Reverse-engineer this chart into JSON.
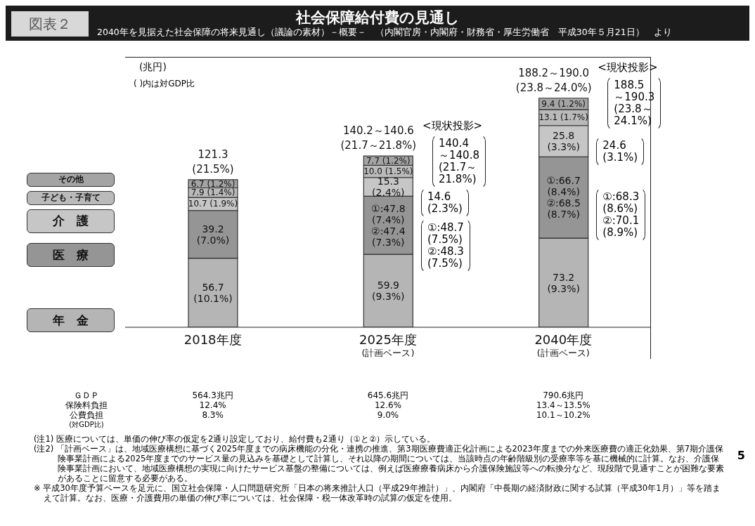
{
  "chart_data": {
    "type": "bar",
    "title": "社会保障給付費の見通し",
    "subtitle": "2040年を見据えた社会保障の将来見通し（議論の素材）－概要－　（内閣官房・内閣府・財務省・厚生労働省　平成30年５月21日）　より",
    "stacked": true,
    "legend": "left",
    "categories": [
      "2018年度",
      "2025年度\n(計画ベース)",
      "2040年度\n(計画ベース)"
    ],
    "series": [
      {
        "name": "年　金",
        "type": "bar",
        "color": "#b5b5b5",
        "values": [
          56.7,
          59.9,
          73.2
        ],
        "value_labels": [
          "56.7\n(10.1%)",
          "59.9\n(9.3%)",
          "73.2\n(9.3%)"
        ]
      },
      {
        "name": "医　療",
        "type": "bar",
        "color": "#959595",
        "values": [
          39.2,
          47.8,
          66.7
        ],
        "value_labels": [
          "39.2\n(7.0%)",
          "①:47.8\n(7.4%)\n②:47.4\n(7.3%)",
          "①:66.7\n(8.4%)\n②:68.5\n(8.7%)"
        ]
      },
      {
        "name": "介　護",
        "type": "bar",
        "color": "#c6c6c6",
        "values": [
          10.7,
          15.3,
          25.8
        ],
        "value_labels": [
          "10.7 (1.9%)",
          "15.3\n(2.4%)",
          "25.8\n(3.3%)"
        ]
      },
      {
        "name": "子ども・子育て",
        "type": "bar",
        "color": "#bababa",
        "values": [
          7.9,
          10.0,
          13.1
        ],
        "value_labels": [
          "7.9 (1.4%)",
          "10.0 (1.5%)",
          "13.1 (1.7%)"
        ]
      },
      {
        "name": "その他",
        "type": "bar",
        "color": "#a4a4a4",
        "values": [
          6.7,
          7.7,
          9.4
        ],
        "value_labels": [
          "6.7 (1.2%)",
          "7.7 (1.2%)",
          "9.4 (1.2%)"
        ]
      }
    ],
    "totals": [
      "121.3\n(21.5%)",
      "140.2～140.6\n(21.7～21.8%)",
      "188.2～190.0\n(23.8～24.0%)"
    ],
    "annotations": [
      "(兆円)",
      "( )内は対GDP比",
      "<現状投影>\n140.4\n～140.8\n(21.7～\n21.8%)",
      "14.6\n(2.3%)",
      "①:48.7\n(7.5%)\n②:48.3\n(7.5%)",
      "<現状投影>\n188.5\n～190.3\n(23.8～\n24.1%)",
      "24.6\n(3.1%)",
      "①:68.3\n(8.6%)\n②:70.1\n(8.9%)",
      "図表２",
      "ＧＤＰ",
      "保険料負担",
      "公費負担",
      "(対GDP比)",
      "564.3兆円\n12.4%\n8.3%",
      "645.6兆円\n12.6%\n9.0%",
      "790.6兆円\n13.4～13.5%\n10.1～10.2%",
      "(注1) 医療については、単価の伸び率の仮定を2通り設定しており、給付費も2通り（①と②）示している。",
      "(注2) 「計画ベース」は、地域医療構想に基づく2025年度までの病床機能の分化・連携の推進、第3期医療費適正化計画による2023年度までの外来医療費の適正化効果、第7期介護保険事業計画による2025年度までのサービス量の見込みを基礎として計算し、それ以降の期間については、当該時点の年齢階級別の受療率等を基に機械的に計算。なお、介護保険事業計画において、地域医療構想の実現に向けたサービス基盤の整備については、例えば医療療養病床から介護保険施設等への転換分など、現段階で見通すことが困難な要素があることに留意する必要がある。",
      "※ 平成30年度予算ベースを足元に、国立社会保障・人口問題研究所「日本の将来推計人口（平成29年推計）」、内閣府「中長期の経済財政に関する試算（平成30年1月）」等を踏まえて計算。なお、医療・介護費用の単価の伸び率については、社会保障・税一体改革時の試算の仮定を使用。",
      "5"
    ]
  }
}
